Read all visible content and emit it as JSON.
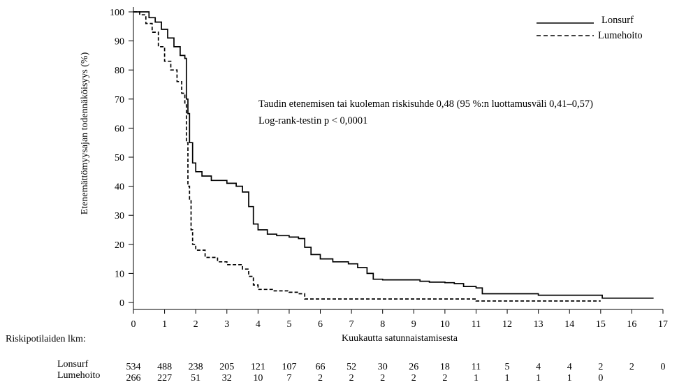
{
  "chart_data": {
    "type": "line",
    "xlabel": "Kuukautta satunnaistamisesta",
    "ylabel": "Etenemättömyysajan todennäköisyys (%)",
    "xlim": [
      0,
      17
    ],
    "ylim": [
      0,
      100
    ],
    "x_ticks": [
      0,
      1,
      2,
      3,
      4,
      5,
      6,
      7,
      8,
      9,
      10,
      11,
      12,
      13,
      14,
      15,
      16,
      17
    ],
    "y_ticks": [
      0,
      10,
      20,
      30,
      40,
      50,
      60,
      70,
      80,
      90,
      100
    ],
    "grid": false,
    "legend_position": "top-right",
    "annotations": [
      "Taudin etenemisen tai kuoleman riskisuhde 0,48 (95 %:n luottamusväli 0,41–0,57)",
      "Log-rank-testin p < 0,0001"
    ],
    "series": [
      {
        "name": "Lonsurf",
        "style": "solid",
        "color": "#000000",
        "points": [
          [
            0,
            100
          ],
          [
            0.3,
            100
          ],
          [
            0.5,
            98
          ],
          [
            0.7,
            96.5
          ],
          [
            0.9,
            94
          ],
          [
            1.1,
            91
          ],
          [
            1.3,
            88
          ],
          [
            1.5,
            85
          ],
          [
            1.65,
            84
          ],
          [
            1.7,
            70
          ],
          [
            1.75,
            65
          ],
          [
            1.8,
            55
          ],
          [
            1.9,
            48
          ],
          [
            2.0,
            45
          ],
          [
            2.2,
            43.5
          ],
          [
            2.5,
            42
          ],
          [
            3.0,
            41
          ],
          [
            3.3,
            40
          ],
          [
            3.5,
            38
          ],
          [
            3.7,
            33
          ],
          [
            3.85,
            27
          ],
          [
            4.0,
            25
          ],
          [
            4.3,
            23.5
          ],
          [
            4.6,
            23
          ],
          [
            5.0,
            22.5
          ],
          [
            5.3,
            22
          ],
          [
            5.5,
            19
          ],
          [
            5.7,
            16.5
          ],
          [
            6.0,
            15
          ],
          [
            6.4,
            14
          ],
          [
            6.9,
            13.3
          ],
          [
            7.2,
            12
          ],
          [
            7.5,
            10
          ],
          [
            7.7,
            8
          ],
          [
            8.0,
            7.8
          ],
          [
            8.5,
            7.8
          ],
          [
            9.2,
            7.3
          ],
          [
            9.5,
            7
          ],
          [
            10.0,
            6.8
          ],
          [
            10.3,
            6.5
          ],
          [
            10.6,
            5.5
          ],
          [
            11.0,
            5
          ],
          [
            11.2,
            3
          ],
          [
            12.0,
            3
          ],
          [
            13.0,
            2.5
          ],
          [
            14.0,
            2.5
          ],
          [
            15.0,
            2.5
          ],
          [
            15.05,
            1.5
          ],
          [
            16.0,
            1.5
          ],
          [
            16.7,
            1.5
          ]
        ]
      },
      {
        "name": "Lumehoito",
        "style": "dashed",
        "color": "#000000",
        "points": [
          [
            0,
            100
          ],
          [
            0.2,
            99
          ],
          [
            0.4,
            96
          ],
          [
            0.6,
            93
          ],
          [
            0.8,
            88
          ],
          [
            1.0,
            83
          ],
          [
            1.2,
            80
          ],
          [
            1.4,
            76
          ],
          [
            1.55,
            72
          ],
          [
            1.65,
            68
          ],
          [
            1.7,
            55
          ],
          [
            1.75,
            40
          ],
          [
            1.8,
            35
          ],
          [
            1.85,
            25
          ],
          [
            1.9,
            20
          ],
          [
            2.0,
            18
          ],
          [
            2.3,
            15.5
          ],
          [
            2.7,
            14
          ],
          [
            3.0,
            13
          ],
          [
            3.5,
            11.5
          ],
          [
            3.7,
            9
          ],
          [
            3.85,
            6
          ],
          [
            4.0,
            4.5
          ],
          [
            4.5,
            4
          ],
          [
            5.0,
            3.5
          ],
          [
            5.3,
            3
          ],
          [
            5.5,
            1.2
          ],
          [
            6.0,
            1.2
          ],
          [
            8.0,
            1.2
          ],
          [
            10.0,
            1.2
          ],
          [
            10.95,
            1.2
          ],
          [
            11.0,
            0.5
          ],
          [
            13.0,
            0.5
          ],
          [
            15.0,
            0.5
          ]
        ]
      }
    ],
    "risk_table": {
      "header": "Riskipotilaiden lkm:",
      "rows": [
        {
          "label": "Lonsurf",
          "values": [
            "534",
            "488",
            "238",
            "205",
            "121",
            "107",
            "66",
            "52",
            "30",
            "26",
            "18",
            "11",
            "5",
            "4",
            "4",
            "2",
            "2",
            "0"
          ]
        },
        {
          "label": "Lumehoito",
          "values": [
            "266",
            "227",
            "51",
            "32",
            "10",
            "7",
            "2",
            "2",
            "2",
            "2",
            "2",
            "1",
            "1",
            "1",
            "1",
            "0"
          ]
        }
      ]
    }
  }
}
